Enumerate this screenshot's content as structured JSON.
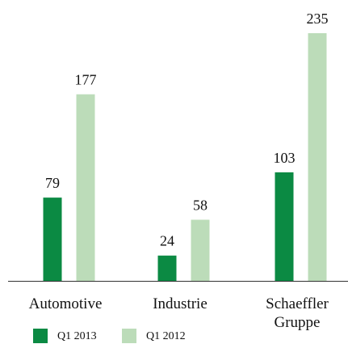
{
  "chart_data": {
    "type": "bar",
    "categories": [
      "Automotive",
      "Industrie",
      "Schaeffler Gruppe"
    ],
    "series": [
      {
        "name": "Q1 2013",
        "color": "#0b8a43",
        "values": [
          79,
          24,
          103
        ]
      },
      {
        "name": "Q1 2012",
        "color": "#bcdcb9",
        "values": [
          177,
          58,
          235
        ]
      }
    ]
  }
}
